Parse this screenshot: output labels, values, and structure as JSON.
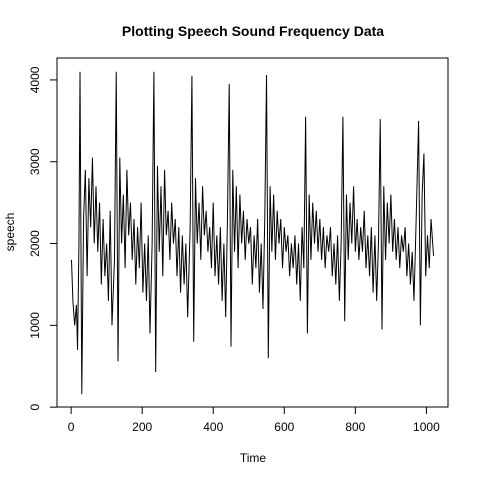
{
  "chart_data": {
    "type": "line",
    "title": "Plotting Speech Sound Frequency Data",
    "x_label": "Time",
    "y_label": "speech",
    "color": "#000000",
    "xlim": [
      -39.76,
      1060.76
    ],
    "ylim": [
      2,
      4268
    ],
    "xticks": [
      0,
      200,
      400,
      600,
      800,
      1000
    ],
    "yticks": [
      0,
      1000,
      2000,
      3000,
      4000
    ],
    "x": [
      1,
      5,
      10,
      15,
      18,
      22,
      25,
      30,
      35,
      40,
      45,
      50,
      55,
      60,
      65,
      70,
      75,
      80,
      85,
      90,
      95,
      100,
      105,
      110,
      115,
      122,
      127,
      132,
      137,
      142,
      147,
      152,
      157,
      162,
      167,
      172,
      177,
      182,
      187,
      192,
      197,
      202,
      207,
      212,
      217,
      222,
      228,
      233,
      238,
      243,
      248,
      253,
      258,
      263,
      268,
      273,
      278,
      283,
      288,
      293,
      298,
      303,
      308,
      313,
      318,
      323,
      328,
      335,
      340,
      345,
      350,
      355,
      360,
      365,
      370,
      375,
      380,
      385,
      390,
      395,
      400,
      405,
      410,
      415,
      420,
      425,
      430,
      435,
      440,
      445,
      450,
      455,
      460,
      465,
      470,
      475,
      480,
      485,
      490,
      495,
      500,
      505,
      510,
      515,
      520,
      525,
      530,
      535,
      540,
      545,
      550,
      555,
      560,
      565,
      570,
      575,
      580,
      585,
      590,
      595,
      600,
      605,
      610,
      615,
      620,
      625,
      630,
      635,
      640,
      645,
      650,
      655,
      660,
      665,
      670,
      675,
      680,
      685,
      690,
      695,
      700,
      705,
      710,
      715,
      720,
      725,
      730,
      735,
      740,
      745,
      750,
      755,
      760,
      765,
      770,
      775,
      780,
      785,
      790,
      795,
      800,
      805,
      810,
      815,
      820,
      825,
      830,
      835,
      840,
      845,
      850,
      855,
      860,
      865,
      870,
      875,
      880,
      885,
      890,
      895,
      900,
      905,
      910,
      915,
      920,
      925,
      930,
      935,
      940,
      945,
      950,
      955,
      960,
      965,
      970,
      978,
      983,
      988,
      993,
      998,
      1003,
      1008,
      1013,
      1020
    ],
    "values": [
      1800,
      1300,
      1000,
      1250,
      700,
      2000,
      4100,
      160,
      2300,
      2900,
      1600,
      2800,
      2200,
      3050,
      2000,
      2700,
      1900,
      2500,
      1500,
      2300,
      1600,
      2000,
      1300,
      2400,
      1000,
      1800,
      4100,
      560,
      3050,
      2000,
      2600,
      1700,
      2900,
      2100,
      2500,
      1800,
      2300,
      1500,
      2200,
      1700,
      2500,
      1400,
      2000,
      1300,
      2100,
      900,
      2000,
      4100,
      430,
      2950,
      1900,
      2700,
      1600,
      2900,
      2100,
      2400,
      1800,
      2500,
      2000,
      2300,
      1600,
      2200,
      1400,
      2100,
      1500,
      2000,
      1100,
      2200,
      4050,
      800,
      2800,
      2000,
      2500,
      1800,
      2700,
      2100,
      2400,
      1900,
      2200,
      1700,
      2500,
      1600,
      2100,
      1500,
      2200,
      1300,
      2000,
      1100,
      2300,
      3950,
      740,
      2900,
      1900,
      2700,
      1700,
      2600,
      2000,
      2400,
      1800,
      2300,
      2000,
      2200,
      1500,
      2100,
      1700,
      2300,
      1400,
      2000,
      1200,
      2300,
      4060,
      600,
      2700,
      1900,
      2600,
      1800,
      2400,
      2000,
      2300,
      1700,
      2200,
      1900,
      2100,
      1600,
      2000,
      1700,
      2100,
      1500,
      2000,
      1300,
      2200,
      1700,
      3550,
      900,
      2600,
      1800,
      2500,
      2000,
      2400,
      1900,
      2300,
      1800,
      2200,
      1700,
      2100,
      1900,
      2200,
      1600,
      2000,
      1500,
      2100,
      1300,
      2000,
      3550,
      1050,
      2600,
      1800,
      2500,
      2000,
      2700,
      1900,
      2300,
      1800,
      2200,
      1900,
      2400,
      1700,
      2100,
      1600,
      2200,
      1400,
      2100,
      1300,
      2000,
      3520,
      950,
      2700,
      1800,
      2500,
      2000,
      2600,
      1900,
      2300,
      1800,
      2200,
      1700,
      2100,
      1900,
      2200,
      1600,
      2000,
      1500,
      1900,
      1300,
      2100,
      3500,
      1000,
      2600,
      3100,
      1600,
      2100,
      1700,
      2300,
      1850
    ]
  }
}
